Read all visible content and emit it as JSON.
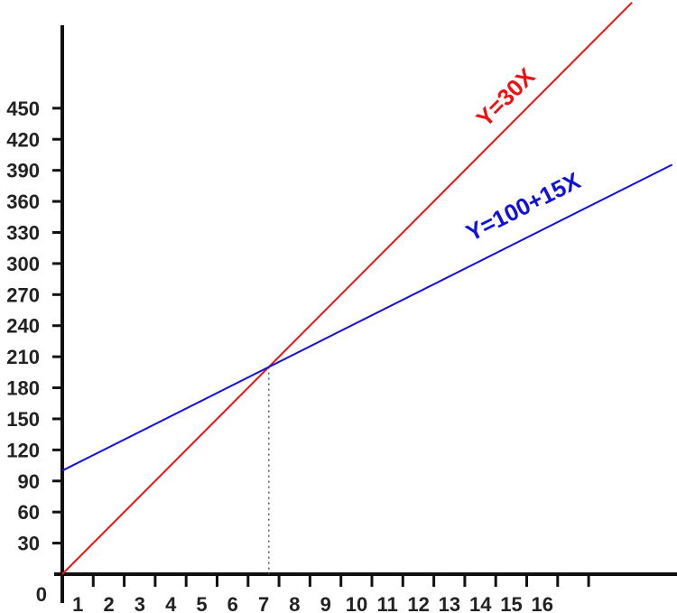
{
  "chart_data": {
    "type": "line",
    "origin_label": "0",
    "x_ticks": [
      1,
      2,
      3,
      4,
      5,
      6,
      7,
      8,
      9,
      10,
      11,
      12,
      13,
      14,
      15,
      16
    ],
    "y_ticks": [
      30,
      60,
      90,
      120,
      150,
      180,
      210,
      240,
      270,
      300,
      330,
      360,
      390,
      420,
      450
    ],
    "xlim": [
      0,
      19.7
    ],
    "ylim": [
      0,
      552
    ],
    "grid": false,
    "series": [
      {
        "name": "Y=30X",
        "intercept": 0,
        "slope": 30,
        "color": "#ee1111"
      },
      {
        "name": "Y=100+15X",
        "intercept": 100,
        "slope": 15,
        "color": "#1111dd"
      }
    ],
    "intersection": {
      "x": 6.67,
      "y": 200,
      "marker": "dotted-vertical-line"
    }
  }
}
